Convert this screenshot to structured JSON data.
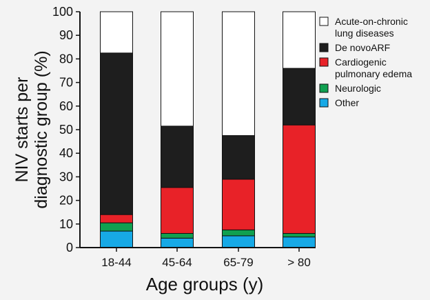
{
  "chart_data": {
    "type": "bar",
    "stacked": true,
    "categories": [
      "18-44",
      "45-64",
      "65-79",
      "> 80"
    ],
    "xlabel": "Age groups (y)",
    "ylabel_lines": [
      "NIV starts per",
      "diagnostic group (%)"
    ],
    "ylim": [
      0,
      100
    ],
    "yticks": [
      0,
      10,
      20,
      30,
      40,
      50,
      60,
      70,
      80,
      90,
      100
    ],
    "grid": false,
    "legend_position": "top-right",
    "series": [
      {
        "name": "Other",
        "color": "#17a9e6",
        "values": [
          7,
          4,
          5,
          4.5
        ]
      },
      {
        "name": "Neurologic",
        "color": "#10a050",
        "values": [
          3.5,
          2,
          2.5,
          1.5
        ]
      },
      {
        "name": "Cardiogenic pulmonary edema",
        "color": "#e82228",
        "values": [
          3.5,
          19.5,
          21.5,
          46
        ]
      },
      {
        "name": "De novoARF",
        "color": "#1e1e1e",
        "values": [
          68.5,
          26,
          18.5,
          24
        ]
      },
      {
        "name": "Acute-on-chronic lung diseases",
        "color": "#ffffff",
        "values": [
          17.5,
          48.5,
          52.5,
          24
        ]
      }
    ],
    "legend": [
      {
        "lines": [
          "Acute-on-chronic",
          "lung diseases"
        ],
        "color": "#ffffff"
      },
      {
        "lines": [
          "De novoARF"
        ],
        "color": "#1e1e1e"
      },
      {
        "lines": [
          "Cardiogenic",
          "pulmonary edema"
        ],
        "color": "#e82228"
      },
      {
        "lines": [
          "Neurologic"
        ],
        "color": "#10a050"
      },
      {
        "lines": [
          "Other"
        ],
        "color": "#17a9e6"
      }
    ]
  }
}
